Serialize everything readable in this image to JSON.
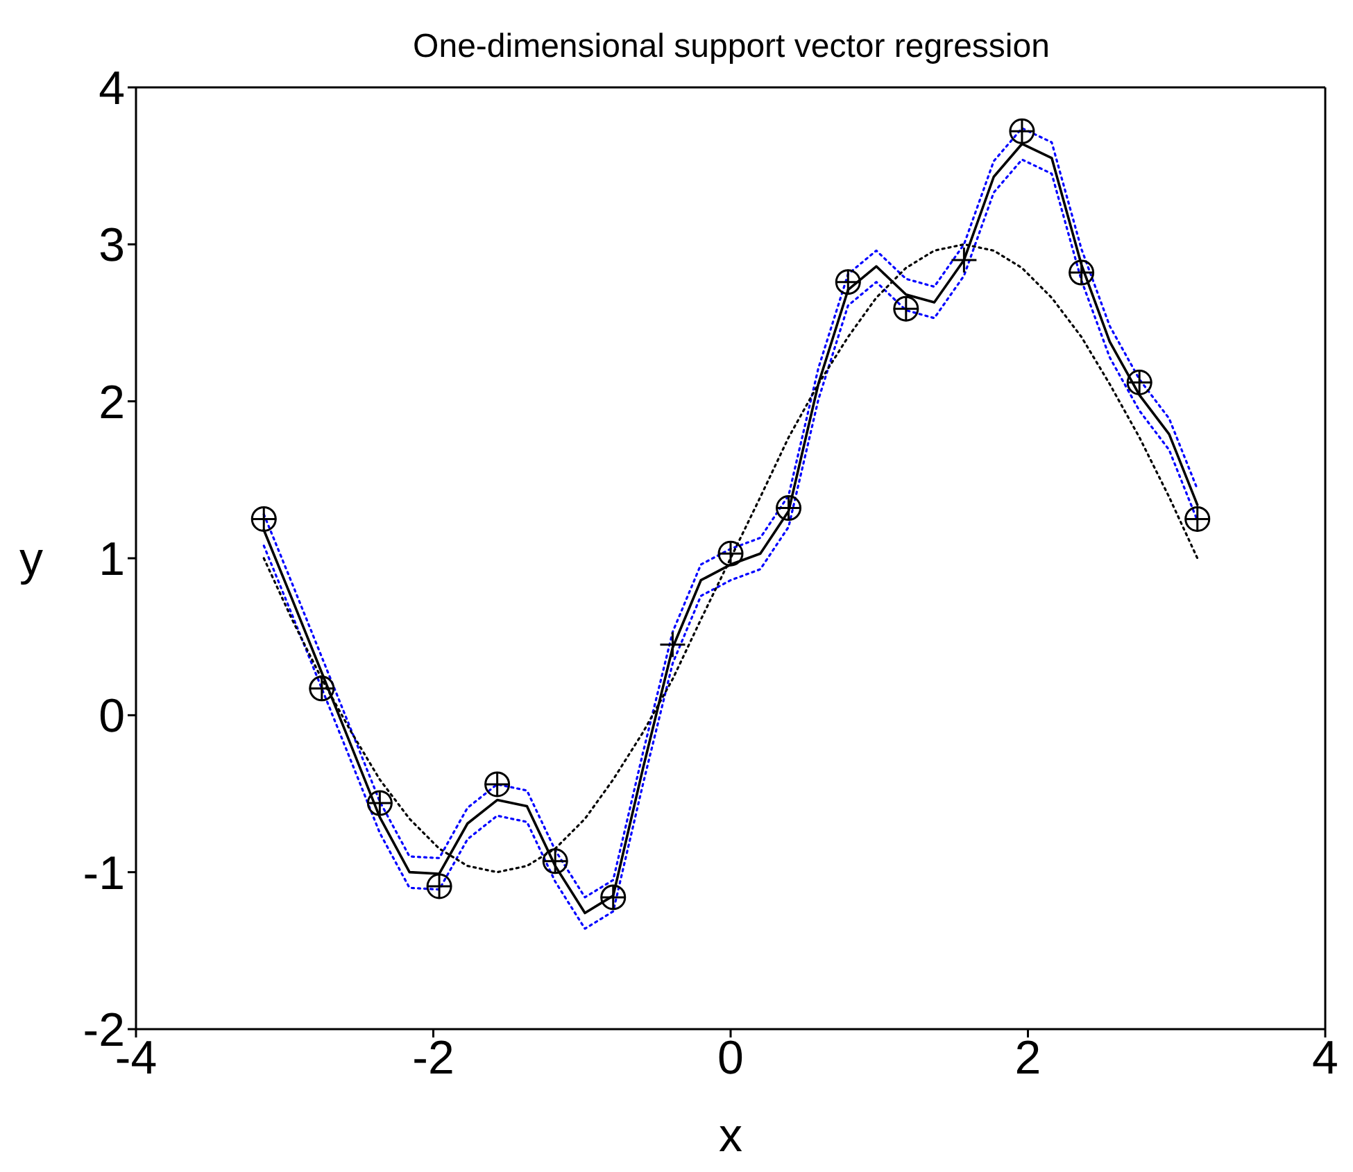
{
  "chart_data": {
    "type": "line",
    "title": "One-dimensional support vector regression",
    "xlabel": "x",
    "ylabel": "y",
    "xlim": [
      -4,
      4
    ],
    "ylim": [
      -2,
      4
    ],
    "xticks": [
      -4,
      -2,
      0,
      2,
      4
    ],
    "yticks": [
      -2,
      -1,
      0,
      1,
      2,
      3,
      4
    ],
    "series": [
      {
        "type": "line",
        "color": "#000000",
        "line_style": "solid",
        "marker": "none",
        "x": [
          -3.14,
          -2.95,
          -2.75,
          -2.55,
          -2.36,
          -2.16,
          -1.96,
          -1.77,
          -1.57,
          -1.37,
          -1.18,
          -0.98,
          -0.79,
          -0.59,
          -0.39,
          -0.2,
          0,
          0.2,
          0.39,
          0.59,
          0.79,
          0.98,
          1.18,
          1.37,
          1.57,
          1.77,
          1.96,
          2.16,
          2.36,
          2.55,
          2.75,
          2.95,
          3.14
        ],
        "values": [
          1.18,
          0.74,
          0.27,
          -0.2,
          -0.65,
          -1.0,
          -1.01,
          -0.69,
          -0.54,
          -0.58,
          -0.96,
          -1.26,
          -1.15,
          -0.34,
          0.43,
          0.86,
          0.96,
          1.03,
          1.3,
          2.11,
          2.71,
          2.86,
          2.68,
          2.63,
          2.9,
          3.43,
          3.64,
          3.55,
          2.87,
          2.38,
          2.04,
          1.79,
          1.34
        ]
      },
      {
        "type": "line",
        "color": "#0000ff",
        "line_style": "dotted",
        "marker": "none",
        "x": [
          -3.14,
          -2.95,
          -2.75,
          -2.55,
          -2.36,
          -2.16,
          -1.96,
          -1.77,
          -1.57,
          -1.37,
          -1.18,
          -0.98,
          -0.79,
          -0.59,
          -0.39,
          -0.2,
          0,
          0.2,
          0.39,
          0.59,
          0.79,
          0.98,
          1.18,
          1.37,
          1.57,
          1.77,
          1.96,
          2.16,
          2.36,
          2.55,
          2.75,
          2.95,
          3.14
        ],
        "values": [
          1.28,
          0.84,
          0.37,
          -0.1,
          -0.55,
          -0.9,
          -0.91,
          -0.59,
          -0.44,
          -0.48,
          -0.86,
          -1.16,
          -1.05,
          -0.24,
          0.53,
          0.96,
          1.06,
          1.13,
          1.4,
          2.21,
          2.81,
          2.96,
          2.78,
          2.73,
          3.0,
          3.53,
          3.74,
          3.65,
          2.97,
          2.48,
          2.14,
          1.89,
          1.44
        ]
      },
      {
        "type": "line",
        "color": "#0000ff",
        "line_style": "dotted",
        "marker": "none",
        "x": [
          -3.14,
          -2.95,
          -2.75,
          -2.55,
          -2.36,
          -2.16,
          -1.96,
          -1.77,
          -1.57,
          -1.37,
          -1.18,
          -0.98,
          -0.79,
          -0.59,
          -0.39,
          -0.2,
          0,
          0.2,
          0.39,
          0.59,
          0.79,
          0.98,
          1.18,
          1.37,
          1.57,
          1.77,
          1.96,
          2.16,
          2.36,
          2.55,
          2.75,
          2.95,
          3.14
        ],
        "values": [
          1.08,
          0.64,
          0.17,
          -0.3,
          -0.75,
          -1.1,
          -1.11,
          -0.79,
          -0.64,
          -0.68,
          -1.06,
          -1.36,
          -1.25,
          -0.44,
          0.33,
          0.76,
          0.86,
          0.93,
          1.2,
          2.01,
          2.61,
          2.76,
          2.58,
          2.53,
          2.8,
          3.33,
          3.54,
          3.45,
          2.77,
          2.28,
          1.94,
          1.69,
          1.24
        ]
      },
      {
        "type": "line",
        "color": "#000000",
        "line_style": "dotted",
        "marker": "none",
        "x": [
          -3.14,
          -2.95,
          -2.75,
          -2.55,
          -2.36,
          -2.16,
          -1.96,
          -1.77,
          -1.57,
          -1.37,
          -1.18,
          -0.98,
          -0.79,
          -0.59,
          -0.39,
          -0.2,
          0,
          0.2,
          0.39,
          0.59,
          0.79,
          0.98,
          1.18,
          1.37,
          1.57,
          1.77,
          1.96,
          2.16,
          2.36,
          2.55,
          2.75,
          2.95,
          3.14
        ],
        "values": [
          1.0,
          0.61,
          0.23,
          -0.11,
          -0.41,
          -0.66,
          -0.85,
          -0.96,
          -1.0,
          -0.96,
          -0.85,
          -0.66,
          -0.41,
          -0.11,
          0.23,
          0.61,
          1.0,
          1.39,
          1.77,
          2.11,
          2.41,
          2.66,
          2.85,
          2.96,
          3.0,
          2.96,
          2.85,
          2.66,
          2.41,
          2.11,
          1.77,
          1.39,
          1.0
        ]
      },
      {
        "type": "scatter",
        "color": "#000000",
        "marker": "circle",
        "x": [
          -3.14,
          -2.75,
          -2.36,
          -1.96,
          -1.57,
          -1.18,
          -0.79,
          0,
          0.39,
          0.79,
          1.18,
          1.96,
          2.36,
          2.75,
          3.14
        ],
        "values": [
          1.25,
          0.17,
          -0.56,
          -1.09,
          -0.44,
          -0.93,
          -1.16,
          1.03,
          1.32,
          2.76,
          2.59,
          3.72,
          2.82,
          2.12,
          1.25
        ]
      },
      {
        "type": "scatter",
        "color": "#000000",
        "marker": "cross",
        "x": [
          -3.14,
          -2.75,
          -2.36,
          -1.96,
          -1.57,
          -1.18,
          -0.79,
          -0.39,
          0,
          0.39,
          0.79,
          1.18,
          1.57,
          1.96,
          2.36,
          2.75,
          3.14
        ],
        "values": [
          1.25,
          0.17,
          -0.56,
          -1.09,
          -0.44,
          -0.93,
          -1.16,
          0.45,
          1.03,
          1.32,
          2.76,
          2.59,
          2.9,
          3.72,
          2.82,
          2.12,
          1.25
        ]
      }
    ]
  }
}
